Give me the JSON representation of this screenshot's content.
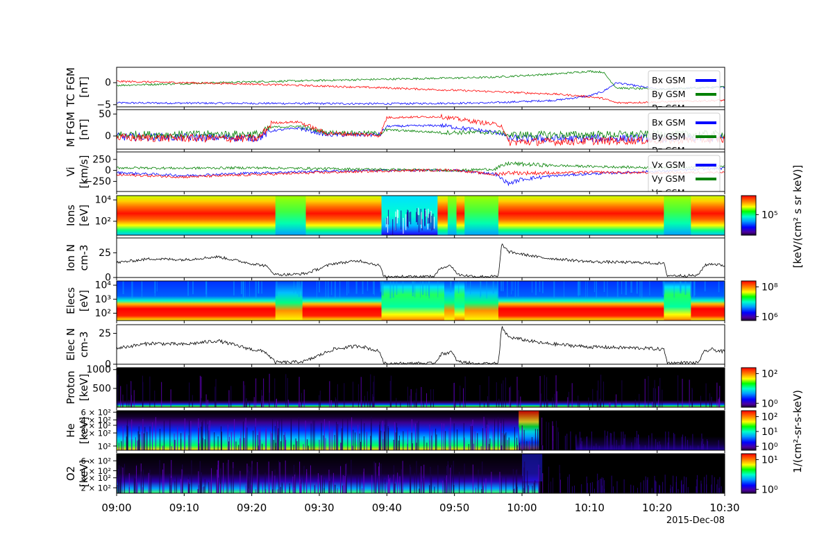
{
  "figure": {
    "date_label": "2015-Dec-08",
    "colorbar_labels": {
      "ion_energy_flux": "[keV/(cm² s sr keV)]",
      "energetic_flux": "1/(cm²-sr-s-keV)"
    }
  },
  "time_axis": {
    "start_min": 0,
    "end_min": 90,
    "ticks": [
      {
        "min": 0,
        "label": "09:00"
      },
      {
        "min": 10,
        "label": "09:10"
      },
      {
        "min": 20,
        "label": "09:20"
      },
      {
        "min": 30,
        "label": "09:30"
      },
      {
        "min": 40,
        "label": "09:40"
      },
      {
        "min": 50,
        "label": "09:50"
      },
      {
        "min": 60,
        "label": "10:00"
      },
      {
        "min": 70,
        "label": "10:10"
      },
      {
        "min": 80,
        "label": "10:20"
      },
      {
        "min": 90,
        "label": "10:30"
      }
    ]
  },
  "colors": {
    "x": "#0000ff",
    "y": "#008000",
    "z": "#ff0000",
    "density": "#000000"
  },
  "chart_data": [
    {
      "type": "line",
      "panel": "tc_fgm",
      "ylabel": [
        "TC FGM",
        "[nT]"
      ],
      "ylim": [
        -5.5,
        3.5
      ],
      "yticks": [
        {
          "v": 0,
          "label": "0"
        },
        {
          "v": -5,
          "label": "−5"
        }
      ],
      "legend": {
        "placement": "top-right",
        "entries": [
          "Bx GSM",
          "By GSM",
          "Bz GSM"
        ]
      },
      "series": [
        {
          "name": "Bx GSM",
          "key": "x",
          "x": [
            0,
            20,
            40,
            55,
            65,
            70,
            72,
            74,
            80,
            90
          ],
          "y": [
            -4.6,
            -4.7,
            -4.8,
            -4.6,
            -4.0,
            -3.0,
            -2.0,
            0.0,
            -1.5,
            -1.0
          ]
        },
        {
          "name": "By GSM",
          "key": "y",
          "x": [
            0,
            20,
            40,
            55,
            65,
            70,
            72,
            74,
            80,
            90
          ],
          "y": [
            -0.6,
            0.2,
            0.8,
            1.2,
            2.0,
            2.6,
            2.4,
            -1.2,
            -1.5,
            -1.0
          ]
        },
        {
          "name": "Bz GSM",
          "key": "z",
          "x": [
            0,
            20,
            40,
            55,
            65,
            70,
            72,
            74,
            80,
            90
          ],
          "y": [
            0.3,
            -0.3,
            -1.2,
            -2.0,
            -2.6,
            -3.2,
            -3.6,
            -4.6,
            -4.4,
            -4.0
          ]
        }
      ]
    },
    {
      "type": "line",
      "panel": "m_fgm",
      "ylabel": [
        "M FGM",
        "[nT]"
      ],
      "ylim": [
        -30,
        60
      ],
      "yticks": [
        {
          "v": 50,
          "label": "50"
        },
        {
          "v": 0,
          "label": "0"
        }
      ],
      "legend": {
        "placement": "top-right",
        "entries": [
          "Bx GSM",
          "By GSM",
          "Bz GSM"
        ]
      },
      "series": [
        {
          "name": "Bx GSM",
          "key": "x",
          "x": [
            0,
            21,
            23,
            27,
            31,
            39,
            40,
            48,
            57,
            58,
            90
          ],
          "y": [
            -2,
            -4,
            12,
            18,
            3,
            3,
            22,
            24,
            6,
            -6,
            -5
          ]
        },
        {
          "name": "By GSM",
          "key": "y",
          "x": [
            0,
            21,
            23,
            27,
            31,
            39,
            40,
            48,
            57,
            58,
            90
          ],
          "y": [
            3,
            4,
            20,
            22,
            8,
            6,
            14,
            8,
            8,
            2,
            4
          ]
        },
        {
          "name": "Bz GSM",
          "key": "z",
          "x": [
            0,
            21,
            23,
            27,
            31,
            39,
            40,
            48,
            57,
            58,
            90
          ],
          "y": [
            -4,
            -6,
            30,
            32,
            6,
            2,
            42,
            44,
            24,
            -14,
            -8
          ]
        }
      ]
    },
    {
      "type": "line",
      "panel": "vi",
      "ylabel": [
        "Vi",
        "[km/s]"
      ],
      "ylim": [
        -480,
        420
      ],
      "yticks": [
        {
          "v": 250,
          "label": "250"
        },
        {
          "v": 0,
          "label": "0"
        },
        {
          "v": -250,
          "label": "−250"
        }
      ],
      "legend": {
        "placement": "top-right",
        "entries": [
          "Vx GSM",
          "Vy GSM",
          "Vz GSM"
        ]
      },
      "series": [
        {
          "name": "Vx GSM",
          "key": "x",
          "x": [
            0,
            10,
            20,
            30,
            40,
            50,
            56,
            58,
            60,
            65,
            70,
            80,
            90
          ],
          "y": [
            -50,
            -120,
            -60,
            -20,
            0,
            0,
            -80,
            -300,
            -200,
            -120,
            -80,
            -20,
            50
          ]
        },
        {
          "name": "Vy GSM",
          "key": "y",
          "x": [
            0,
            10,
            20,
            30,
            40,
            50,
            56,
            58,
            60,
            65,
            70,
            80,
            90
          ],
          "y": [
            60,
            50,
            60,
            40,
            20,
            0,
            30,
            160,
            140,
            110,
            90,
            60,
            90
          ]
        },
        {
          "name": "Vz GSM",
          "key": "z",
          "x": [
            0,
            10,
            20,
            30,
            40,
            50,
            56,
            58,
            60,
            65,
            70,
            80,
            90
          ],
          "y": [
            -100,
            -150,
            -100,
            -50,
            -10,
            10,
            -100,
            -50,
            -60,
            -60,
            -40,
            -60,
            -40
          ]
        }
      ]
    },
    {
      "type": "heatmap",
      "panel": "ions",
      "ylabel": [
        "Ions",
        "[eV]"
      ],
      "yscale": "log",
      "ylim": [
        5,
        25000
      ],
      "yticks": [
        {
          "v": 10000,
          "label": "10⁴"
        },
        {
          "v": 100,
          "label": "10²"
        }
      ],
      "colorbar": {
        "ticks": [
          {
            "label": "10⁵"
          }
        ]
      },
      "regimes": [
        {
          "from": 0,
          "to": 23.5,
          "state": "hot"
        },
        {
          "from": 23.5,
          "to": 28,
          "state": "cool"
        },
        {
          "from": 28,
          "to": 39.2,
          "state": "hot"
        },
        {
          "from": 39.2,
          "to": 47.5,
          "state": "lobe"
        },
        {
          "from": 47.5,
          "to": 49,
          "state": "hot"
        },
        {
          "from": 49,
          "to": 50.3,
          "state": "cool"
        },
        {
          "from": 50.3,
          "to": 51.5,
          "state": "hot"
        },
        {
          "from": 51.5,
          "to": 56.5,
          "state": "cool"
        },
        {
          "from": 56.5,
          "to": 81,
          "state": "hot"
        },
        {
          "from": 81,
          "to": 85,
          "state": "cool"
        },
        {
          "from": 85,
          "to": 90,
          "state": "hot"
        }
      ]
    },
    {
      "type": "line",
      "panel": "ion_n",
      "ylabel": [
        "Ion N",
        "cm-3"
      ],
      "ylim": [
        0,
        40
      ],
      "yticks": [
        {
          "v": 25,
          "label": "25"
        },
        {
          "v": 0,
          "label": "0"
        }
      ],
      "series": [
        {
          "name": "Ion N",
          "key": "density",
          "x": [
            0,
            5,
            10,
            15,
            20,
            22,
            23.5,
            26,
            28,
            32,
            36,
            39,
            39.5,
            47,
            48,
            49.5,
            50.5,
            53,
            56.5,
            57,
            58,
            63,
            70,
            78,
            81,
            81.5,
            86,
            87,
            88,
            90
          ],
          "y": [
            15,
            19,
            18,
            21,
            14,
            12,
            3,
            3,
            4,
            14,
            17,
            12,
            1,
            1,
            10,
            12,
            3,
            1,
            1,
            34,
            26,
            20,
            16,
            15,
            14,
            2,
            2,
            12,
            14,
            12
          ]
        }
      ]
    },
    {
      "type": "heatmap",
      "panel": "elecs",
      "ylabel": [
        "Elecs",
        "[eV]"
      ],
      "yscale": "log",
      "ylim": [
        30,
        20000
      ],
      "yticks": [
        {
          "v": 10000,
          "label": "10⁴"
        },
        {
          "v": 1000,
          "label": "10³"
        },
        {
          "v": 100,
          "label": "10²"
        }
      ],
      "colorbar": {
        "ticks": [
          {
            "label": "10⁸"
          },
          {
            "label": "10⁶"
          }
        ]
      },
      "regimes": [
        {
          "from": 0,
          "to": 23.5,
          "state": "sheet"
        },
        {
          "from": 23.5,
          "to": 27.5,
          "state": "boundary"
        },
        {
          "from": 27.5,
          "to": 39.2,
          "state": "sheet"
        },
        {
          "from": 39.2,
          "to": 48.5,
          "state": "lobe"
        },
        {
          "from": 48.5,
          "to": 50,
          "state": "boundary"
        },
        {
          "from": 50,
          "to": 51.5,
          "state": "lobe"
        },
        {
          "from": 51.5,
          "to": 56.5,
          "state": "boundary"
        },
        {
          "from": 56.5,
          "to": 81,
          "state": "sheet"
        },
        {
          "from": 81,
          "to": 85,
          "state": "lobe"
        },
        {
          "from": 85,
          "to": 90,
          "state": "sheet"
        }
      ]
    },
    {
      "type": "line",
      "panel": "elec_n",
      "ylabel": [
        "Elec N",
        "cm-3"
      ],
      "ylim": [
        0,
        32
      ],
      "yticks": [
        {
          "v": 25,
          "label": "25"
        },
        {
          "v": 0,
          "label": "0"
        }
      ],
      "series": [
        {
          "name": "Elec N",
          "key": "density",
          "x": [
            0,
            5,
            10,
            15,
            20,
            22,
            23.5,
            26,
            28,
            32,
            36,
            39,
            39.5,
            47,
            48,
            49.5,
            50.5,
            53,
            56.5,
            57,
            58,
            63,
            70,
            78,
            81,
            81.5,
            86,
            87,
            88,
            90
          ],
          "y": [
            13,
            17,
            16,
            19,
            12,
            10,
            1.5,
            1.5,
            2.5,
            12,
            15,
            10,
            0.5,
            0.5,
            8,
            10,
            2,
            0.5,
            0.5,
            30,
            22,
            17,
            14,
            13,
            12,
            1,
            1,
            10,
            12,
            10
          ]
        }
      ]
    },
    {
      "type": "heatmap",
      "panel": "proton",
      "ylabel": [
        "Proton",
        "[keV]"
      ],
      "ylim": [
        0,
        1050
      ],
      "yticks": [
        {
          "v": 1000,
          "label": "1000"
        },
        {
          "v": 500,
          "label": "500"
        }
      ],
      "colorbar": {
        "ticks": [
          {
            "label": "10²"
          },
          {
            "label": "10⁰"
          }
        ]
      }
    },
    {
      "type": "heatmap",
      "panel": "he",
      "ylabel": [
        "He",
        "[keV]"
      ],
      "yscale": "log",
      "ylim": [
        80,
        650
      ],
      "yticks": [
        {
          "v": 600,
          "label": "6 × 10²"
        },
        {
          "v": 400,
          "label": "4 × 10²"
        },
        {
          "v": 300,
          "label": "3 × 10²"
        },
        {
          "v": 200,
          "label": "2 × 10²"
        },
        {
          "v": 100,
          "label": "10²"
        }
      ],
      "colorbar": {
        "ticks": [
          {
            "label": "10²"
          },
          {
            "label": "10¹"
          },
          {
            "label": "10⁰"
          }
        ]
      }
    },
    {
      "type": "heatmap",
      "panel": "o2",
      "ylabel": [
        "O2",
        "[keV]"
      ],
      "yscale": "log",
      "ylim": [
        160,
        800
      ],
      "yticks": [
        {
          "v": 600,
          "label": "6 × 10²"
        },
        {
          "v": 400,
          "label": "4 × 10²"
        },
        {
          "v": 300,
          "label": "3 × 10²"
        },
        {
          "v": 200,
          "label": "2 × 10²"
        }
      ],
      "colorbar": {
        "ticks": [
          {
            "label": "10¹"
          },
          {
            "label": "10⁰"
          }
        ]
      }
    }
  ]
}
